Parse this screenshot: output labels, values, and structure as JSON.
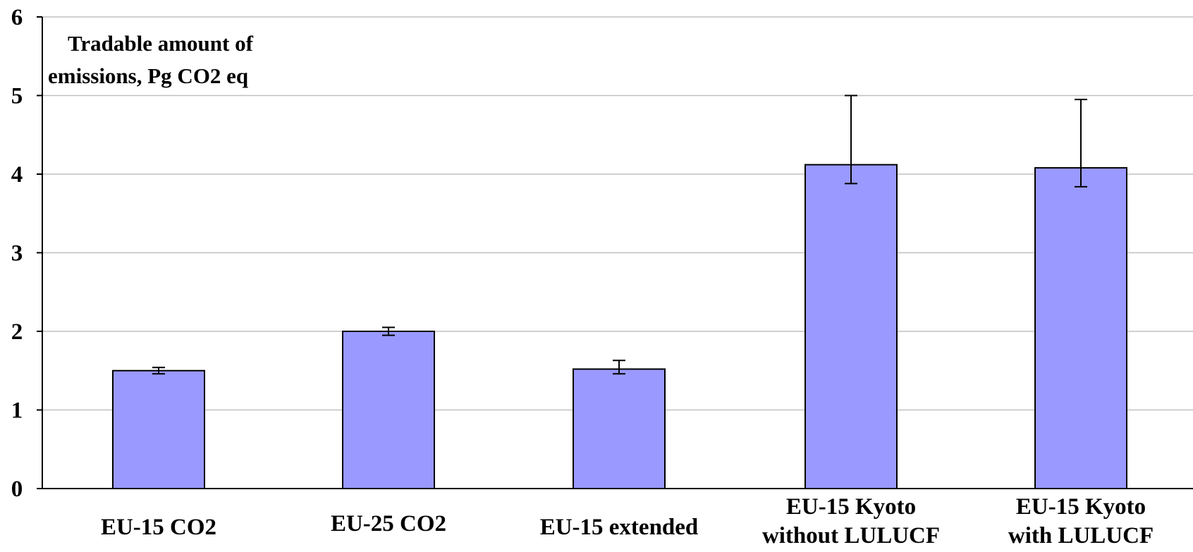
{
  "chart_data": {
    "type": "bar",
    "ylabel_lines": [
      "Tradable amount of",
      "emissions, Pg CO2 eq"
    ],
    "categories": [
      [
        "EU-15 CO2"
      ],
      [
        "EU-25 CO2"
      ],
      [
        "EU-15 extended"
      ],
      [
        "EU-15 Kyoto",
        "without LULUCF"
      ],
      [
        "EU-15 Kyoto",
        "with LULUCF"
      ]
    ],
    "values": [
      1.5,
      2.0,
      1.52,
      4.12,
      4.08
    ],
    "error_low": [
      1.46,
      1.95,
      1.46,
      3.88,
      3.84
    ],
    "error_high": [
      1.54,
      2.05,
      1.63,
      5.0,
      4.95
    ],
    "ylim": [
      0,
      6
    ],
    "yticks": [
      "0",
      "1",
      "2",
      "3",
      "4",
      "5",
      "6"
    ],
    "grid": true,
    "colors": {
      "bar_fill": "#9999FF",
      "bar_stroke": "#000000",
      "grid": "#C0C0C0"
    }
  }
}
